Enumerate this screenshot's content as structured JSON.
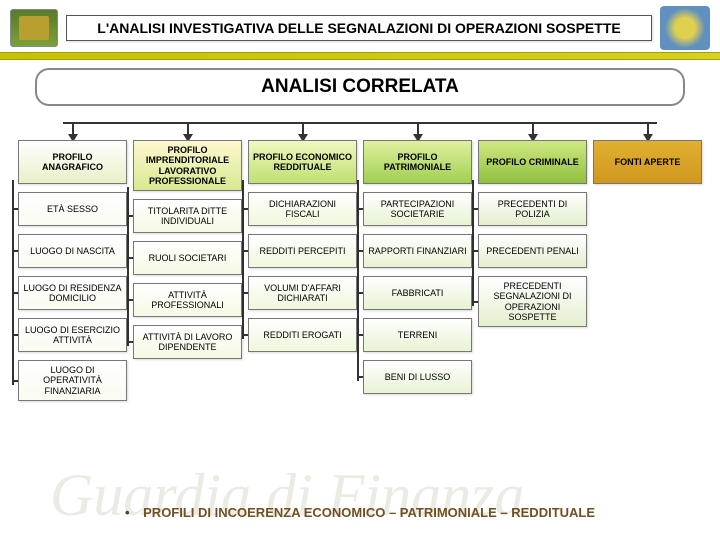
{
  "header": {
    "title": "L'ANALISI INVESTIGATIVA DELLE SEGNALAZIONI DI OPERAZIONI SOSPETTE"
  },
  "section": {
    "title": "ANALISI CORRELATA"
  },
  "structure": {
    "type": "tree",
    "column_gradients": [
      [
        "#ffffff",
        "#e8f0c8"
      ],
      [
        "#fff8d0",
        "#d8e890"
      ],
      [
        "#f0f8c0",
        "#c0e070"
      ],
      [
        "#e0f0a0",
        "#a0d050"
      ],
      [
        "#d0e880",
        "#90c040"
      ],
      [
        "#e0b030",
        "#d09820"
      ]
    ],
    "border_color": "#777777",
    "connector_color": "#333333",
    "columns": [
      {
        "header": "PROFILO ANAGRAFICO",
        "items": [
          "ETÀ SESSO",
          "LUOGO DI NASCITA",
          "LUOGO DI RESIDENZA DOMICILIO",
          "LUOGO DI ESERCIZIO ATTIVITÀ",
          "LUOGO DI OPERATIVITÀ FINANZIARIA"
        ]
      },
      {
        "header": "PROFILO IMPRENDITORIALE LAVORATIVO PROFESSIONALE",
        "items": [
          "TITOLARITA DITTE INDIVIDUALI",
          "RUOLI SOCIETARI",
          "ATTIVITÀ PROFESSIONALI",
          "ATTIVITÀ DI LAVORO DIPENDENTE"
        ]
      },
      {
        "header": "PROFILO ECONOMICO REDDITUALE",
        "items": [
          "DICHIARAZIONI FISCALI",
          "REDDITI PERCEPITI",
          "VOLUMI D'AFFARI DICHIARATI",
          "REDDITI EROGATI"
        ]
      },
      {
        "header": "PROFILO PATRIMONIALE",
        "items": [
          "PARTECIPAZIONI SOCIETARIE",
          "RAPPORTI FINANZIARI",
          "FABBRICATI",
          "TERRENI",
          "BENI DI LUSSO"
        ]
      },
      {
        "header": "PROFILO CRIMINALE",
        "items": [
          "PRECEDENTI DI POLIZIA",
          "PRECEDENTI PENALI",
          "PRECEDENTI SEGNALAZIONI DI OPERAZIONI SOSPETTE"
        ]
      },
      {
        "header": "FONTI APERTE",
        "items": []
      }
    ]
  },
  "footer": {
    "bullet": "•",
    "text": "PROFILI DI INCOERENZA ECONOMICO – PATRIMONIALE – REDDITUALE"
  },
  "watermark": "Guardia di Finanza"
}
